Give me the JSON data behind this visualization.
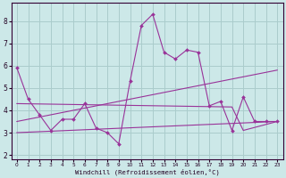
{
  "xlabel": "Windchill (Refroidissement éolien,°C)",
  "background_color": "#cce8e8",
  "grid_color": "#aacccc",
  "line_color": "#993399",
  "x_ticks": [
    0,
    1,
    2,
    3,
    4,
    5,
    6,
    7,
    8,
    9,
    10,
    11,
    12,
    13,
    14,
    15,
    16,
    17,
    18,
    19,
    20,
    21,
    22,
    23
  ],
  "y_ticks": [
    2,
    3,
    4,
    5,
    6,
    7,
    8
  ],
  "ylim": [
    1.8,
    8.8
  ],
  "xlim": [
    -0.5,
    23.5
  ],
  "series1_x": [
    0,
    1,
    2,
    3,
    4,
    5,
    6,
    7,
    8,
    9,
    10,
    11,
    12,
    13,
    14,
    15,
    16,
    17,
    18,
    19,
    20,
    21,
    22,
    23
  ],
  "series1_y": [
    5.9,
    4.5,
    3.8,
    3.1,
    3.6,
    3.6,
    4.3,
    3.2,
    3.0,
    2.5,
    5.3,
    7.8,
    8.3,
    6.6,
    6.3,
    6.7,
    6.6,
    4.2,
    4.4,
    3.1,
    4.6,
    3.5,
    3.5,
    3.5
  ],
  "series2_x": [
    0,
    23
  ],
  "series2_y": [
    3.5,
    5.8
  ],
  "series3_x": [
    0,
    23
  ],
  "series3_y": [
    3.0,
    3.5
  ],
  "series4_x": [
    0,
    19,
    20,
    23
  ],
  "series4_y": [
    4.3,
    4.15,
    3.1,
    3.5
  ]
}
